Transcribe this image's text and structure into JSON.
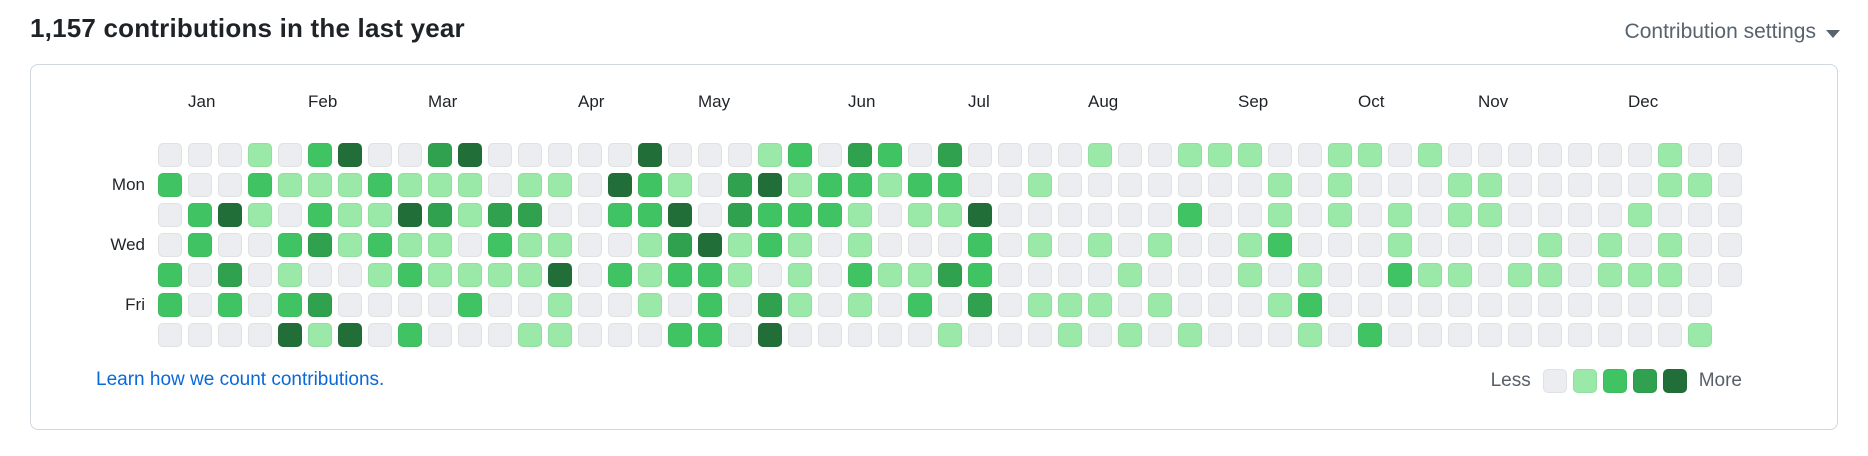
{
  "header": {
    "title": "1,157 contributions in the last year",
    "settings_label": "Contribution settings"
  },
  "calendar": {
    "month_labels": [
      {
        "label": "Jan",
        "col": 2
      },
      {
        "label": "Feb",
        "col": 6
      },
      {
        "label": "Mar",
        "col": 10
      },
      {
        "label": "Apr",
        "col": 15
      },
      {
        "label": "May",
        "col": 19
      },
      {
        "label": "Jun",
        "col": 24
      },
      {
        "label": "Jul",
        "col": 28
      },
      {
        "label": "Aug",
        "col": 32
      },
      {
        "label": "Sep",
        "col": 37
      },
      {
        "label": "Oct",
        "col": 41
      },
      {
        "label": "Nov",
        "col": 45
      },
      {
        "label": "Dec",
        "col": 50
      }
    ],
    "day_labels": [
      {
        "label": "Mon",
        "row": 2
      },
      {
        "label": "Wed",
        "row": 4
      },
      {
        "label": "Fri",
        "row": 6
      }
    ],
    "footer": {
      "link_text": "Learn how we count contributions.",
      "legend_less": "Less",
      "legend_more": "More"
    }
  },
  "chart_data": {
    "type": "heatmap",
    "title": "1,157 contributions in the last year",
    "rows_per_week": 7,
    "row_order": "Sun to Sat, top to bottom",
    "levels_legend": {
      "0": "#ebedf0",
      "1": "#9be9a8",
      "2": "#40c463",
      "3": "#30a14e",
      "4": "#216e39"
    },
    "weeks": [
      [
        0,
        2,
        0,
        0,
        2,
        2,
        0
      ],
      [
        0,
        0,
        2,
        2,
        0,
        0,
        0
      ],
      [
        0,
        0,
        4,
        0,
        3,
        2,
        0
      ],
      [
        1,
        2,
        1,
        0,
        0,
        0,
        0
      ],
      [
        0,
        1,
        0,
        2,
        1,
        2,
        4
      ],
      [
        2,
        1,
        2,
        3,
        0,
        3,
        1
      ],
      [
        4,
        1,
        1,
        1,
        0,
        0,
        4
      ],
      [
        0,
        2,
        1,
        2,
        1,
        0,
        0
      ],
      [
        0,
        1,
        4,
        1,
        2,
        0,
        2
      ],
      [
        3,
        1,
        3,
        1,
        1,
        0,
        0
      ],
      [
        4,
        1,
        1,
        0,
        1,
        2,
        0
      ],
      [
        0,
        0,
        3,
        2,
        1,
        0,
        0
      ],
      [
        0,
        1,
        3,
        1,
        1,
        0,
        1
      ],
      [
        0,
        1,
        0,
        1,
        4,
        1,
        1
      ],
      [
        0,
        0,
        0,
        0,
        0,
        0,
        0
      ],
      [
        0,
        4,
        2,
        0,
        2,
        0,
        0
      ],
      [
        4,
        2,
        2,
        1,
        1,
        1,
        0
      ],
      [
        0,
        1,
        4,
        3,
        2,
        0,
        2
      ],
      [
        0,
        0,
        0,
        4,
        2,
        2,
        2
      ],
      [
        0,
        3,
        3,
        1,
        1,
        0,
        0
      ],
      [
        1,
        4,
        2,
        2,
        0,
        3,
        4
      ],
      [
        2,
        1,
        2,
        1,
        1,
        1,
        0
      ],
      [
        0,
        2,
        2,
        0,
        0,
        0,
        0
      ],
      [
        3,
        2,
        1,
        1,
        2,
        1,
        0
      ],
      [
        2,
        1,
        0,
        0,
        1,
        0,
        0
      ],
      [
        0,
        2,
        1,
        0,
        1,
        2,
        0
      ],
      [
        3,
        2,
        1,
        0,
        3,
        0,
        1
      ],
      [
        0,
        0,
        4,
        2,
        2,
        3,
        0
      ],
      [
        0,
        0,
        0,
        0,
        0,
        0,
        0
      ],
      [
        0,
        1,
        0,
        1,
        0,
        1,
        0
      ],
      [
        0,
        0,
        0,
        0,
        0,
        1,
        1
      ],
      [
        1,
        0,
        0,
        1,
        0,
        1,
        0
      ],
      [
        0,
        0,
        0,
        0,
        1,
        0,
        1
      ],
      [
        0,
        0,
        0,
        1,
        0,
        1,
        0
      ],
      [
        1,
        0,
        2,
        0,
        0,
        0,
        1
      ],
      [
        1,
        0,
        0,
        0,
        0,
        0,
        0
      ],
      [
        1,
        0,
        0,
        1,
        1,
        0,
        0
      ],
      [
        0,
        1,
        1,
        2,
        0,
        1,
        0
      ],
      [
        0,
        0,
        0,
        0,
        1,
        2,
        1
      ],
      [
        1,
        1,
        1,
        0,
        0,
        0,
        0
      ],
      [
        1,
        0,
        0,
        0,
        0,
        0,
        2
      ],
      [
        0,
        0,
        1,
        1,
        2,
        0,
        0
      ],
      [
        1,
        0,
        0,
        0,
        1,
        0,
        0
      ],
      [
        0,
        1,
        1,
        0,
        1,
        0,
        0
      ],
      [
        0,
        1,
        1,
        0,
        0,
        0,
        0
      ],
      [
        0,
        0,
        0,
        0,
        1,
        0,
        0
      ],
      [
        0,
        0,
        0,
        1,
        1,
        0,
        0
      ],
      [
        0,
        0,
        0,
        0,
        0,
        0,
        0
      ],
      [
        0,
        0,
        0,
        1,
        1,
        0,
        0
      ],
      [
        0,
        0,
        1,
        0,
        1,
        0,
        0
      ],
      [
        1,
        1,
        0,
        1,
        1,
        0,
        0
      ],
      [
        0,
        1,
        0,
        0,
        0,
        0,
        1
      ],
      [
        0,
        0,
        0,
        0,
        0
      ]
    ]
  }
}
